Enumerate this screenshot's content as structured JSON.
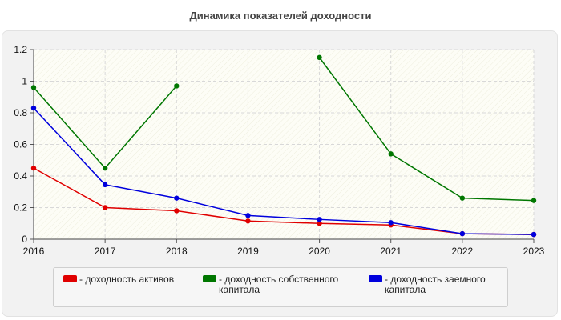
{
  "chart_data": {
    "type": "line",
    "title": "Динамика показателей доходности",
    "xlabel": "",
    "ylabel": "",
    "x": [
      2016,
      2017,
      2018,
      2019,
      2020,
      2021,
      2022,
      2023
    ],
    "ylim": [
      0,
      1.2
    ],
    "yticks": [
      "0",
      "0.2",
      "0.4",
      "0.6",
      "0.8",
      "1",
      "1.2"
    ],
    "grid": true,
    "legend_position": "bottom",
    "series": [
      {
        "name": "- доходность активов",
        "color": "#e00000",
        "values": [
          0.45,
          0.2,
          0.18,
          0.115,
          0.1,
          0.09,
          0.035,
          0.03
        ]
      },
      {
        "name": "- доходность собственного капитала",
        "color": "#007700",
        "values": [
          0.96,
          0.45,
          0.97,
          null,
          1.15,
          0.54,
          0.26,
          0.245
        ]
      },
      {
        "name": "- доходность заемного капитала",
        "color": "#0000dd",
        "values": [
          0.83,
          0.345,
          0.26,
          0.15,
          0.125,
          0.105,
          0.035,
          0.03
        ]
      }
    ]
  }
}
